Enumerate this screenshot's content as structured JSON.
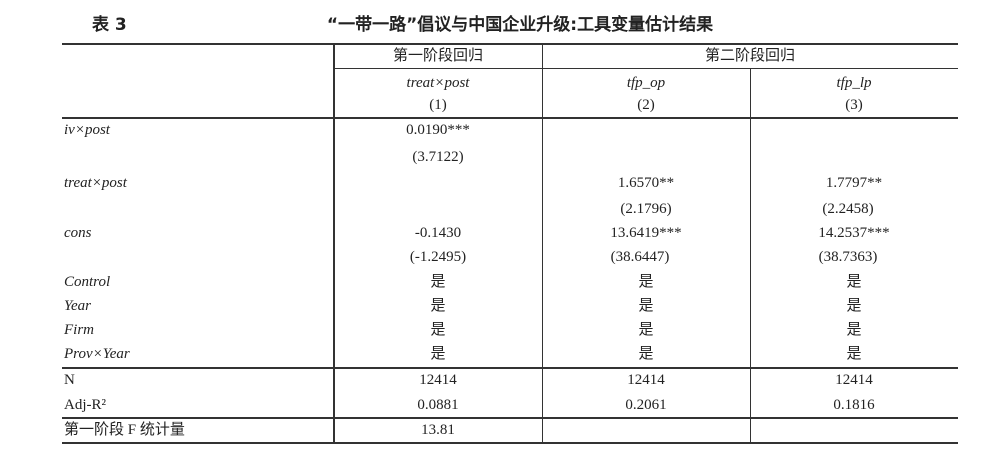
{
  "table_label": "表 3",
  "title": "“一带一路”倡议与中国企业升级:工具变量估计结果",
  "header": {
    "groups": [
      "第一阶段回归",
      "第二阶段回归"
    ],
    "dep_vars": [
      "treat×post",
      "tfp_op",
      "tfp_lp"
    ],
    "col_numbers": [
      "(1)",
      "(2)",
      "(3)"
    ]
  },
  "rows": [
    {
      "label": "iv×post",
      "italic": true,
      "values": [
        "0.0190***",
        "",
        ""
      ]
    },
    {
      "label": "",
      "values": [
        "(3.7122)",
        "",
        ""
      ]
    },
    {
      "label": "treat×post",
      "italic": true,
      "values": [
        "",
        "1.6570**",
        "1.7797**"
      ]
    },
    {
      "label": "",
      "values": [
        "",
        "(2.1796)",
        "(2.2458)"
      ]
    },
    {
      "label": "cons",
      "italic": true,
      "values": [
        "-0.1430",
        "13.6419***",
        "14.2537***"
      ]
    },
    {
      "label": "",
      "values": [
        "(-1.2495)",
        "(38.6447)",
        "(38.7363)"
      ]
    },
    {
      "label": "Control",
      "italic": true,
      "values": [
        "是",
        "是",
        "是"
      ]
    },
    {
      "label": "Year",
      "italic": true,
      "values": [
        "是",
        "是",
        "是"
      ]
    },
    {
      "label": "Firm",
      "italic": true,
      "values": [
        "是",
        "是",
        "是"
      ]
    },
    {
      "label": "Prov×Year",
      "italic": true,
      "values": [
        "是",
        "是",
        "是"
      ]
    },
    {
      "label": "N",
      "values": [
        "12414",
        "12414",
        "12414"
      ]
    },
    {
      "label": "Adj-R²",
      "values": [
        "0.0881",
        "0.2061",
        "0.1816"
      ]
    },
    {
      "label": "第一阶段 F 统计量",
      "values": [
        "13.81",
        "",
        ""
      ]
    }
  ]
}
